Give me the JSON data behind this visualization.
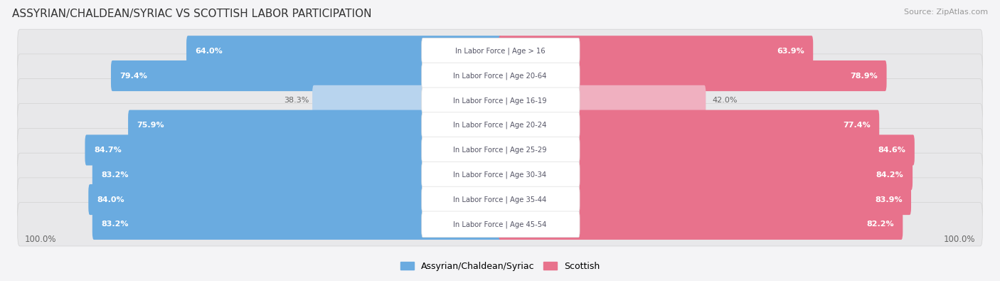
{
  "title": "ASSYRIAN/CHALDEAN/SYRIAC VS SCOTTISH LABOR PARTICIPATION",
  "source": "Source: ZipAtlas.com",
  "categories": [
    "In Labor Force | Age > 16",
    "In Labor Force | Age 20-64",
    "In Labor Force | Age 16-19",
    "In Labor Force | Age 20-24",
    "In Labor Force | Age 25-29",
    "In Labor Force | Age 30-34",
    "In Labor Force | Age 35-44",
    "In Labor Force | Age 45-54"
  ],
  "assyrian_values": [
    64.0,
    79.4,
    38.3,
    75.9,
    84.7,
    83.2,
    84.0,
    83.2
  ],
  "scottish_values": [
    63.9,
    78.9,
    42.0,
    77.4,
    84.6,
    84.2,
    83.9,
    82.2
  ],
  "assyrian_color": "#6aabe0",
  "assyrian_color_light": "#b8d4ee",
  "scottish_color": "#e8728c",
  "scottish_color_light": "#f0b0c0",
  "row_bg_color": "#e8e8ea",
  "background_color": "#f4f4f6",
  "center_label_color": "#ffffff",
  "center_label_text_color": "#555566",
  "max_value": 100.0,
  "legend_assyrian": "Assyrian/Chaldean/Syriac",
  "legend_scottish": "Scottish"
}
